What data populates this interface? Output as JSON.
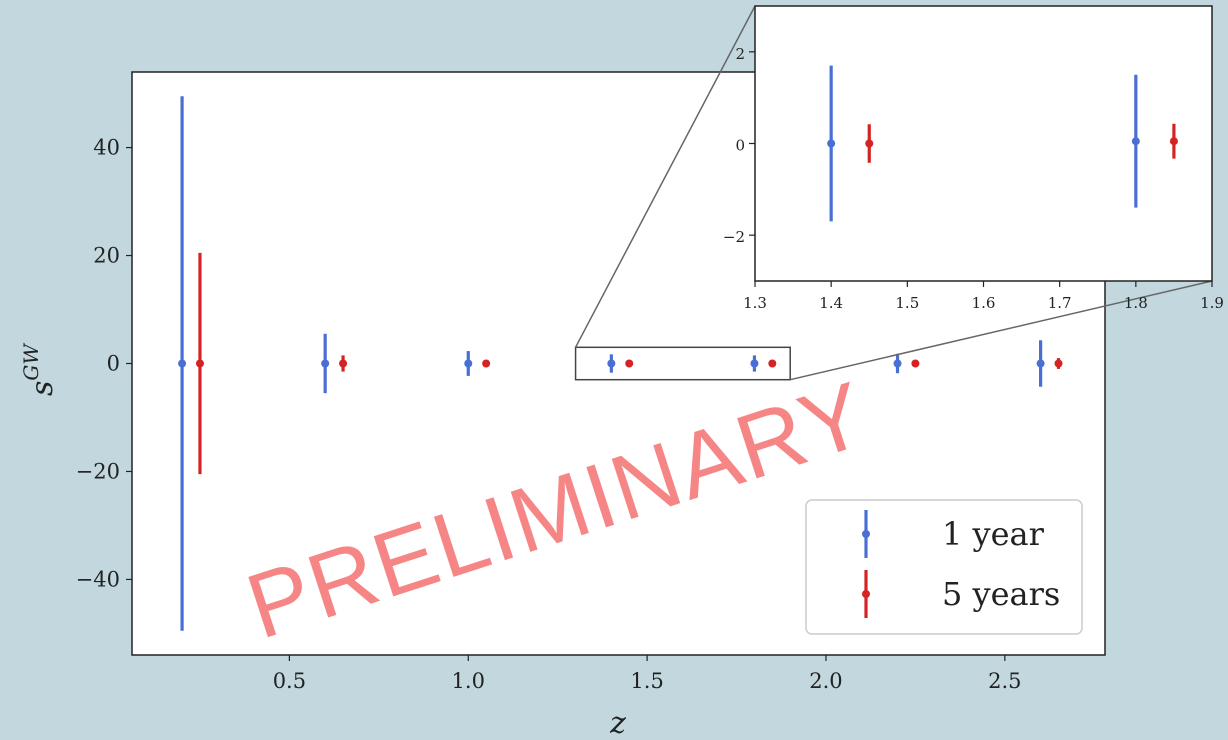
{
  "chart_data": [
    {
      "type": "scatter",
      "xlabel": "z",
      "ylabel": "s^GW",
      "xlim": [
        0.06,
        2.78
      ],
      "ylim": [
        -54,
        54
      ],
      "xticks": [
        0.5,
        1.0,
        1.5,
        2.0,
        2.5
      ],
      "xtick_labels": [
        "0.5",
        "1.0",
        "1.5",
        "2.0",
        "2.5"
      ],
      "yticks": [
        -40,
        -20,
        0,
        20,
        40
      ],
      "ytick_labels": [
        "−40",
        "−20",
        "0",
        "20",
        "40"
      ],
      "grid": false,
      "legend_position": "lower-right",
      "series": [
        {
          "name": "1 year",
          "color": "#4a6fd4",
          "points": [
            {
              "x": 0.2,
              "y": 0,
              "err": 49.5
            },
            {
              "x": 0.6,
              "y": 0,
              "err": 5.5
            },
            {
              "x": 1.0,
              "y": 0,
              "err": 2.3
            },
            {
              "x": 1.4,
              "y": 0,
              "err": 1.7
            },
            {
              "x": 1.8,
              "y": 0,
              "err": 1.5
            },
            {
              "x": 2.2,
              "y": 0,
              "err": 1.8
            },
            {
              "x": 2.6,
              "y": 0,
              "err": 4.3
            }
          ]
        },
        {
          "name": "5 years",
          "color": "#d42323",
          "points": [
            {
              "x": 0.25,
              "y": 0,
              "err": 20.5
            },
            {
              "x": 0.65,
              "y": 0,
              "err": 1.5
            },
            {
              "x": 1.05,
              "y": 0,
              "err": 0.6
            },
            {
              "x": 1.45,
              "y": 0,
              "err": 0.4
            },
            {
              "x": 1.85,
              "y": 0,
              "err": 0.4
            },
            {
              "x": 2.25,
              "y": 0,
              "err": 0.5
            },
            {
              "x": 2.65,
              "y": 0,
              "err": 1.0
            }
          ]
        }
      ],
      "zoom_region": {
        "xlim": [
          1.3,
          1.9
        ],
        "ylim": [
          -3,
          3
        ]
      }
    },
    {
      "type": "scatter",
      "xlim": [
        1.3,
        1.9
      ],
      "ylim": [
        -3,
        3
      ],
      "xticks": [
        1.3,
        1.4,
        1.5,
        1.6,
        1.7,
        1.8,
        1.9
      ],
      "xtick_labels": [
        "1.3",
        "1.4",
        "1.5",
        "1.6",
        "1.7",
        "1.8",
        "1.9"
      ],
      "yticks": [
        -2,
        0,
        2
      ],
      "ytick_labels": [
        "−2",
        "0",
        "2"
      ],
      "series": [
        {
          "name": "1 year",
          "color": "#4a6fd4",
          "points": [
            {
              "x": 1.4,
              "y": 0,
              "err": 1.7
            },
            {
              "x": 1.8,
              "y": 0.05,
              "err": 1.45
            }
          ]
        },
        {
          "name": "5 years",
          "color": "#d42323",
          "points": [
            {
              "x": 1.45,
              "y": 0,
              "err": 0.42
            },
            {
              "x": 1.85,
              "y": 0.05,
              "err": 0.38
            }
          ]
        }
      ]
    }
  ],
  "watermark": "PRELIMINARY"
}
